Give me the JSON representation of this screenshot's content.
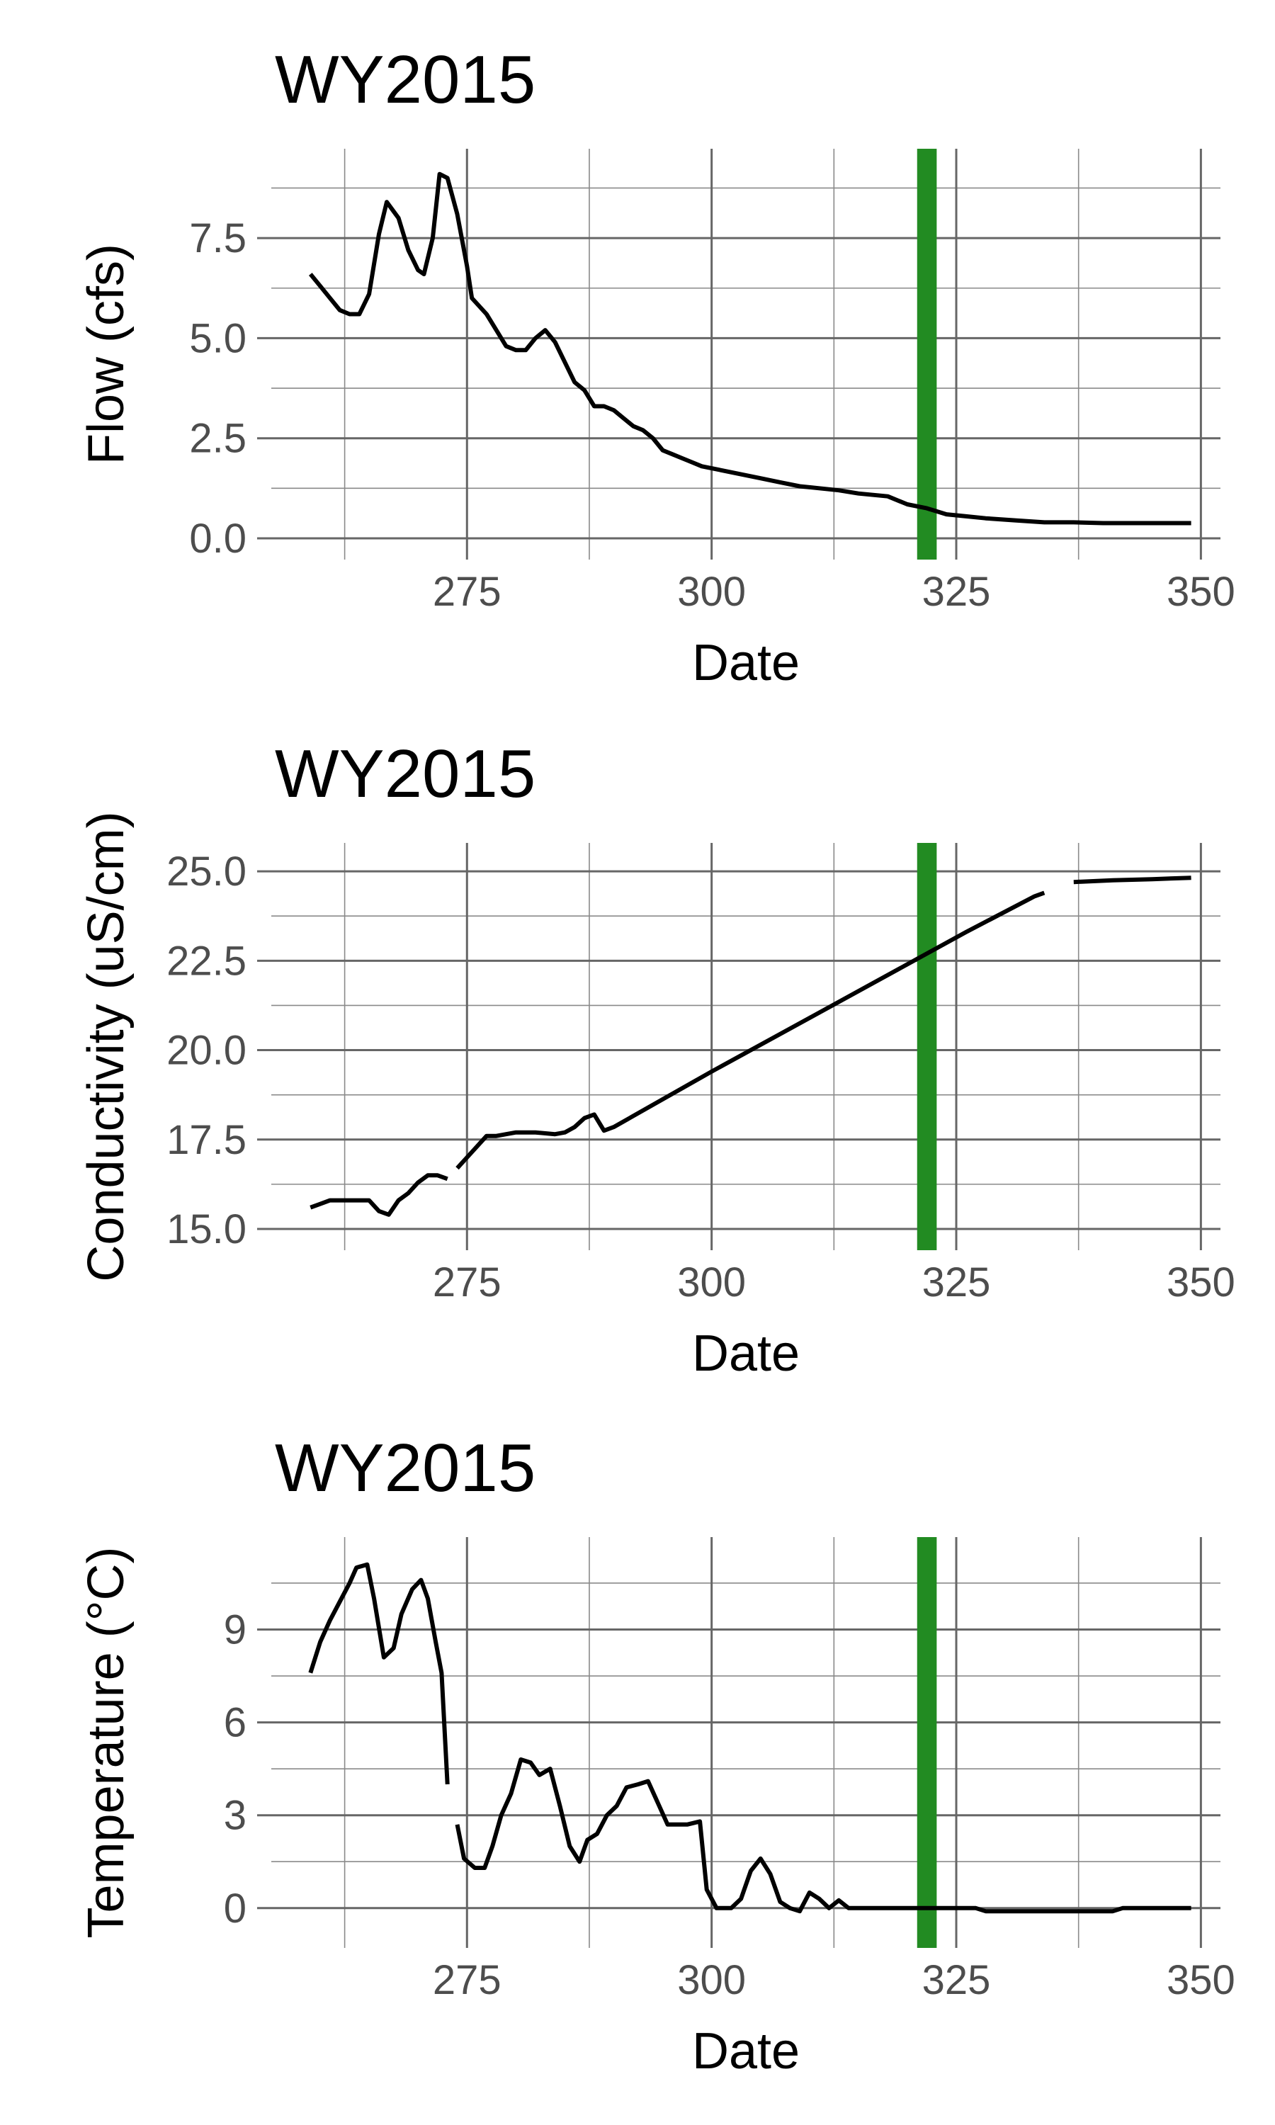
{
  "chart_data": [
    {
      "type": "line",
      "title": "WY2015",
      "xlabel": "Date",
      "ylabel": "Flow (cfs)",
      "xlim": [
        255,
        352
      ],
      "ylim": [
        0,
        9.2
      ],
      "x_ticks": [
        275,
        300,
        325,
        350
      ],
      "y_ticks": [
        0,
        2.5,
        5,
        7.5
      ],
      "y_tick_labels": [
        "0.0",
        "2.5",
        "5.0",
        "7.5"
      ],
      "grid": true,
      "highlight_band": {
        "from": 321,
        "to": 323,
        "color": "#228b22"
      },
      "series": [
        {
          "color": "#000000",
          "segments": [
            [
              [
                259,
                6.6
              ],
              [
                260,
                6.3
              ],
              [
                261,
                6.0
              ],
              [
                262,
                5.7
              ],
              [
                263,
                5.6
              ],
              [
                264,
                5.6
              ],
              [
                265,
                6.1
              ],
              [
                266,
                7.6
              ],
              [
                266.8,
                8.4
              ],
              [
                268,
                8.0
              ],
              [
                269,
                7.2
              ],
              [
                270,
                6.7
              ],
              [
                270.6,
                6.6
              ],
              [
                271.5,
                7.5
              ],
              [
                272.2,
                9.1
              ],
              [
                273,
                9.0
              ],
              [
                274,
                8.1
              ],
              [
                275,
                6.8
              ],
              [
                275.5,
                6.0
              ],
              [
                277,
                5.6
              ],
              [
                278,
                5.2
              ],
              [
                279,
                4.8
              ],
              [
                280,
                4.7
              ],
              [
                281,
                4.7
              ],
              [
                282,
                5.0
              ],
              [
                283,
                5.2
              ],
              [
                284,
                4.9
              ],
              [
                285,
                4.4
              ],
              [
                286,
                3.9
              ],
              [
                287,
                3.7
              ],
              [
                288,
                3.3
              ],
              [
                289,
                3.3
              ],
              [
                290,
                3.2
              ],
              [
                291,
                3.0
              ],
              [
                292,
                2.8
              ],
              [
                293,
                2.7
              ],
              [
                294,
                2.5
              ],
              [
                295,
                2.2
              ],
              [
                296,
                2.1
              ],
              [
                297,
                2.0
              ],
              [
                298,
                1.9
              ],
              [
                299,
                1.8
              ],
              [
                300,
                1.75
              ],
              [
                301,
                1.7
              ],
              [
                303,
                1.6
              ],
              [
                305,
                1.5
              ],
              [
                307,
                1.4
              ],
              [
                309,
                1.3
              ],
              [
                311,
                1.25
              ],
              [
                313,
                1.2
              ],
              [
                315,
                1.12
              ],
              [
                318,
                1.05
              ],
              [
                320,
                0.85
              ],
              [
                322,
                0.75
              ],
              [
                324,
                0.6
              ],
              [
                326,
                0.55
              ],
              [
                328,
                0.5
              ],
              [
                331,
                0.45
              ],
              [
                334,
                0.4
              ],
              [
                337,
                0.4
              ],
              [
                340,
                0.38
              ],
              [
                343,
                0.38
              ],
              [
                346,
                0.38
              ],
              [
                349,
                0.38
              ]
            ]
          ]
        }
      ]
    },
    {
      "type": "line",
      "title": "WY2015",
      "xlabel": "Date",
      "ylabel": "Conductivity (uS/cm)",
      "xlim": [
        255,
        352
      ],
      "ylim": [
        15,
        25.2
      ],
      "x_ticks": [
        275,
        300,
        325,
        350
      ],
      "y_ticks": [
        15,
        17.5,
        20,
        22.5,
        25
      ],
      "y_tick_labels": [
        "15.0",
        "17.5",
        "20.0",
        "22.5",
        "25.0"
      ],
      "grid": true,
      "highlight_band": {
        "from": 321,
        "to": 323,
        "color": "#228b22"
      },
      "series": [
        {
          "color": "#000000",
          "segments": [
            [
              [
                259,
                15.6
              ],
              [
                260,
                15.7
              ],
              [
                261,
                15.8
              ],
              [
                263,
                15.8
              ],
              [
                265,
                15.8
              ],
              [
                266,
                15.5
              ],
              [
                267,
                15.4
              ],
              [
                268,
                15.8
              ],
              [
                269,
                16.0
              ],
              [
                270,
                16.3
              ],
              [
                271,
                16.5
              ],
              [
                272,
                16.5
              ],
              [
                273,
                16.4
              ]
            ],
            [
              [
                274,
                16.7
              ],
              [
                275,
                17.0
              ],
              [
                276,
                17.3
              ],
              [
                277,
                17.6
              ],
              [
                278,
                17.6
              ],
              [
                279,
                17.65
              ],
              [
                280,
                17.7
              ],
              [
                282,
                17.7
              ],
              [
                284,
                17.65
              ],
              [
                285,
                17.7
              ],
              [
                286,
                17.85
              ],
              [
                287,
                18.1
              ],
              [
                288,
                18.2
              ],
              [
                289,
                17.75
              ],
              [
                290,
                17.85
              ],
              [
                300,
                19.4
              ],
              [
                310,
                20.9
              ],
              [
                320,
                22.4
              ],
              [
                326,
                23.3
              ],
              [
                333,
                24.3
              ],
              [
                334,
                24.4
              ]
            ],
            [
              [
                337,
                24.7
              ],
              [
                341,
                24.75
              ],
              [
                345,
                24.78
              ],
              [
                349,
                24.82
              ]
            ]
          ]
        }
      ]
    },
    {
      "type": "line",
      "title": "WY2015",
      "xlabel": "Date",
      "ylabel": "Temperature (°C)",
      "xlim": [
        255,
        352
      ],
      "ylim": [
        -0.6,
        11.3
      ],
      "x_ticks": [
        275,
        300,
        325,
        350
      ],
      "y_ticks": [
        0,
        3,
        6,
        9
      ],
      "y_tick_labels": [
        "0",
        "3",
        "6",
        "9"
      ],
      "grid": true,
      "highlight_band": {
        "from": 321,
        "to": 323,
        "color": "#228b22"
      },
      "series": [
        {
          "color": "#000000",
          "segments": [
            [
              [
                259,
                7.6
              ],
              [
                260,
                8.6
              ],
              [
                261,
                9.3
              ],
              [
                262,
                9.9
              ],
              [
                263,
                10.5
              ],
              [
                263.7,
                11.0
              ],
              [
                264.8,
                11.1
              ],
              [
                265.5,
                10.0
              ],
              [
                266.5,
                8.1
              ],
              [
                267.5,
                8.4
              ],
              [
                268.3,
                9.5
              ],
              [
                269.4,
                10.3
              ],
              [
                270.3,
                10.6
              ],
              [
                271,
                10.0
              ],
              [
                271.8,
                8.6
              ],
              [
                272.4,
                7.6
              ],
              [
                273,
                4.0
              ]
            ],
            [
              [
                274,
                2.7
              ],
              [
                274.7,
                1.6
              ],
              [
                275.8,
                1.3
              ],
              [
                276.8,
                1.3
              ],
              [
                277.6,
                2.0
              ],
              [
                278.5,
                3.0
              ],
              [
                279.5,
                3.7
              ],
              [
                280.5,
                4.8
              ],
              [
                281.5,
                4.7
              ],
              [
                282.4,
                4.3
              ],
              [
                283.5,
                4.5
              ],
              [
                284.5,
                3.3
              ],
              [
                285.5,
                2.0
              ],
              [
                286.5,
                1.5
              ],
              [
                287.3,
                2.2
              ],
              [
                288.3,
                2.4
              ],
              [
                289.3,
                3.0
              ],
              [
                290.3,
                3.3
              ],
              [
                291.3,
                3.9
              ],
              [
                292.5,
                4.0
              ],
              [
                293.5,
                4.1
              ],
              [
                294.5,
                3.4
              ],
              [
                295.5,
                2.7
              ],
              [
                296.5,
                2.7
              ],
              [
                297.5,
                2.7
              ],
              [
                298.8,
                2.8
              ],
              [
                299.5,
                0.6
              ],
              [
                300.5,
                0.0
              ],
              [
                302,
                0.0
              ],
              [
                303,
                0.3
              ],
              [
                304,
                1.2
              ],
              [
                305,
                1.6
              ],
              [
                306,
                1.1
              ],
              [
                307,
                0.2
              ],
              [
                308,
                0.0
              ],
              [
                309,
                -0.1
              ],
              [
                310,
                0.5
              ],
              [
                311,
                0.3
              ],
              [
                312,
                0.0
              ],
              [
                313,
                0.25
              ],
              [
                314,
                0.0
              ],
              [
                320,
                0.0
              ],
              [
                327,
                0.0
              ],
              [
                328,
                -0.1
              ],
              [
                335,
                -0.1
              ],
              [
                341,
                -0.1
              ],
              [
                342,
                0.0
              ],
              [
                349,
                0.0
              ]
            ]
          ]
        }
      ]
    }
  ]
}
